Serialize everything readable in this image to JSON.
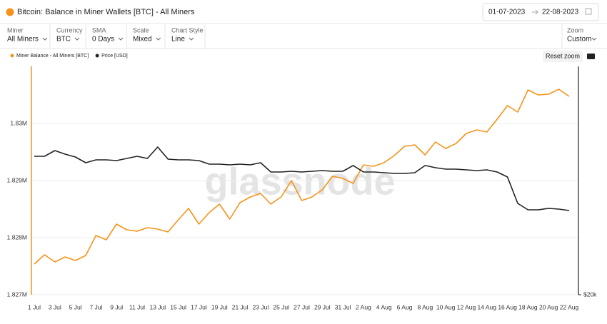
{
  "header": {
    "title": "Bitcoin: Balance in Miner Wallets [BTC] - All Miners",
    "date_from": "01-07-2023",
    "date_to": "22-08-2023"
  },
  "controls": [
    {
      "label": "Miner",
      "value": "All Miners"
    },
    {
      "label": "Currency",
      "value": "BTC"
    },
    {
      "label": "SMA",
      "value": "0 Days"
    },
    {
      "label": "Scale",
      "value": "Mixed"
    },
    {
      "label": "Chart Style",
      "value": "Line"
    }
  ],
  "zoom": {
    "label": "Zoom",
    "value": "Custom"
  },
  "reset_zoom": "Reset zoom",
  "watermark": "glassnode",
  "chart_data": {
    "type": "line",
    "categories": [
      "1 Jul",
      null,
      "3 Jul",
      null,
      "5 Jul",
      null,
      "7 Jul",
      null,
      "9 Jul",
      null,
      "11 Jul",
      null,
      "13 Jul",
      null,
      "15 Jul",
      null,
      "17 Jul",
      null,
      "19 Jul",
      null,
      "21 Jul",
      null,
      "23 Jul",
      null,
      "25 Jul",
      null,
      "27 Jul",
      null,
      "29 Jul",
      null,
      "31 Jul",
      null,
      "2 Aug",
      null,
      "4 Aug",
      null,
      "6 Aug",
      null,
      "8 Aug",
      null,
      "10 Aug",
      null,
      "12 Aug",
      null,
      "14 Aug",
      null,
      "16 Aug",
      null,
      "18 Aug",
      null,
      "20 Aug",
      null,
      "22 Aug"
    ],
    "series": [
      {
        "name": "Miner Balance - All Miners [BTC]",
        "color": "#f7931a",
        "values": [
          1827537,
          1827700,
          1827575,
          1827662,
          1827600,
          1827687,
          1828037,
          1827962,
          1828237,
          1828137,
          1828112,
          1828175,
          1828150,
          1828100,
          1828312,
          1828512,
          1828237,
          1828437,
          1828587,
          1828325,
          1828612,
          1828712,
          1828775,
          1828587,
          1828712,
          1829000,
          1828650,
          1828712,
          1828837,
          1829075,
          1829037,
          1828950,
          1829275,
          1829250,
          1829312,
          1829437,
          1829600,
          1829625,
          1829450,
          1829675,
          1829562,
          1829650,
          1829825,
          1829887,
          1829850,
          1830075,
          1830312,
          1830200,
          1830587,
          1830500,
          1830512,
          1830600,
          1830475
        ]
      },
      {
        "name": "Price [USD]",
        "color": "#222222",
        "axis": "y2",
        "values": [
          30088,
          30088,
          30600,
          30280,
          30025,
          29525,
          29775,
          29775,
          29710,
          29900,
          30088,
          29900,
          30925,
          29835,
          29775,
          29775,
          29710,
          29400,
          29400,
          29340,
          29400,
          29340,
          29525,
          28730,
          28730,
          28790,
          28730,
          28790,
          28850,
          28790,
          28790,
          29280,
          28730,
          28730,
          28665,
          28605,
          28605,
          28665,
          29280,
          29090,
          28970,
          28970,
          28910,
          28850,
          28910,
          28730,
          28310,
          26185,
          25695,
          25695,
          25800,
          25750,
          25640
        ]
      }
    ],
    "ylim": [
      1827000,
      1831000
    ],
    "yticks": [
      {
        "value": 1827000,
        "label": "1.827M"
      },
      {
        "value": 1828000,
        "label": "1.828M"
      },
      {
        "value": 1829000,
        "label": "1.829M"
      },
      {
        "value": 1830000,
        "label": "1.83M"
      }
    ],
    "y2lim": [
      20000,
      39230
    ],
    "y2ticks": [
      {
        "value": 20000,
        "label": "$20k"
      }
    ],
    "y2log": true,
    "grid": true
  }
}
